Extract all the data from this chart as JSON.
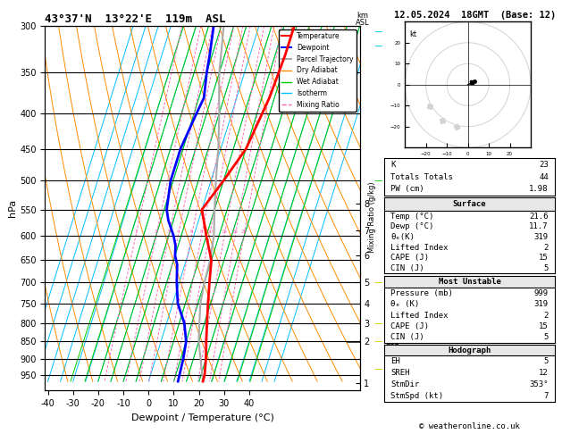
{
  "title_left": "43°37'N  13°22'E  119m  ASL",
  "title_right": "12.05.2024  18GMT  (Base: 12)",
  "xlabel": "Dewpoint / Temperature (°C)",
  "ylabel_left": "hPa",
  "pressure_ticks": [
    300,
    350,
    400,
    450,
    500,
    550,
    600,
    650,
    700,
    750,
    800,
    850,
    900,
    950
  ],
  "temp_profile_p": [
    300,
    330,
    380,
    450,
    500,
    550,
    600,
    650,
    700,
    750,
    800,
    850,
    900,
    950,
    970
  ],
  "temp_profile_t": [
    14,
    14,
    13,
    10,
    5,
    0,
    5,
    10,
    12,
    14,
    16,
    18,
    20,
    21.5,
    21.6
  ],
  "dewp_profile_p": [
    300,
    330,
    350,
    380,
    400,
    450,
    500,
    550,
    570,
    600,
    620,
    640,
    650,
    660,
    680,
    700,
    750,
    800,
    850,
    900,
    950,
    970
  ],
  "dewp_profile_t": [
    -18,
    -16,
    -15,
    -13,
    -14,
    -16,
    -16,
    -14,
    -12,
    -8,
    -6,
    -5,
    -4,
    -3,
    -2,
    -1,
    2,
    7,
    10,
    11,
    11.5,
    11.7
  ],
  "parcel_profile_p": [
    970,
    850,
    800,
    750,
    700,
    650,
    600,
    550,
    500,
    450,
    400,
    380,
    350,
    300
  ],
  "parcel_profile_t": [
    21.6,
    15,
    13,
    11,
    10,
    9.5,
    8,
    5,
    2,
    -1,
    -5,
    -7,
    -10,
    -14
  ],
  "lcl_pressure": 853,
  "isotherm_color": "#00bfff",
  "dry_adiabat_color": "#ff8c00",
  "wet_adiabat_color": "#00cc00",
  "mixing_ratio_color": "#ff69b4",
  "temp_color": "red",
  "dewp_color": "blue",
  "parcel_color": "#aaaaaa",
  "km_ticks": [
    1,
    2,
    3,
    4,
    5,
    6,
    7,
    8
  ],
  "km_pressures": [
    975,
    850,
    800,
    750,
    700,
    640,
    590,
    540
  ],
  "mixing_ratios": [
    1,
    2,
    3,
    4,
    6,
    8,
    10,
    15,
    20,
    25
  ],
  "stats": {
    "K": 23,
    "Totals_Totals": 44,
    "PW_cm": 1.98,
    "Surface_Temp": 21.6,
    "Surface_Dewp": 11.7,
    "Surface_thetae": 319,
    "Surface_LI": 2,
    "Surface_CAPE": 15,
    "Surface_CIN": 5,
    "MU_Pressure": 999,
    "MU_thetae": 319,
    "MU_LI": 2,
    "MU_CAPE": 15,
    "MU_CIN": 5,
    "Hodo_EH": 5,
    "Hodo_SREH": 12,
    "Hodo_StmDir": "353°",
    "Hodo_StmSpd": 7
  },
  "copyright": "© weatheronline.co.uk"
}
